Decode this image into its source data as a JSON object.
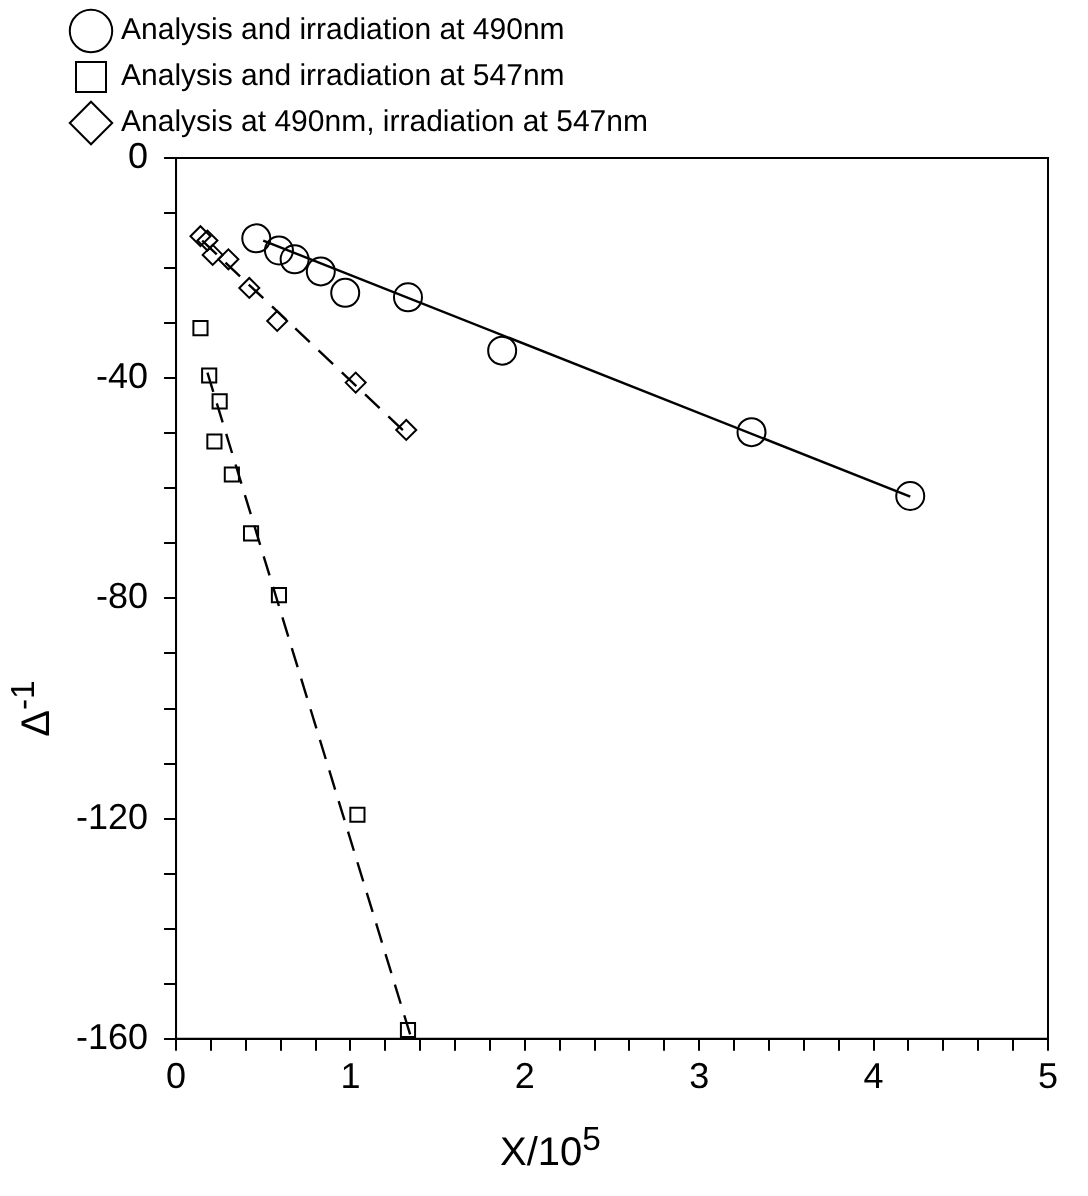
{
  "chart_data": {
    "type": "scatter",
    "xlabel": "X/10$^{5}$",
    "ylabel": "Δ$^{-1}$",
    "xlim": [
      0,
      5
    ],
    "xticks": [
      0,
      {
        "value": 0.2,
        "label": null
      },
      {
        "value": 0.4,
        "label": null
      },
      {
        "value": 0.6,
        "label": null
      },
      {
        "value": 0.8,
        "label": null
      },
      1,
      {
        "value": 1.2,
        "label": null
      },
      {
        "value": 1.4,
        "label": null
      },
      {
        "value": 1.6,
        "label": null
      },
      {
        "value": 1.8,
        "label": null
      },
      2,
      {
        "value": 2.2,
        "label": null
      },
      {
        "value": 2.4,
        "label": null
      },
      {
        "value": 2.6,
        "label": null
      },
      {
        "value": 2.8,
        "label": null
      },
      3,
      {
        "value": 3.2,
        "label": null
      },
      {
        "value": 3.4,
        "label": null
      },
      {
        "value": 3.6,
        "label": null
      },
      {
        "value": 3.8,
        "label": null
      },
      4,
      {
        "value": 4.2,
        "label": null
      },
      {
        "value": 4.4,
        "label": null
      },
      {
        "value": 4.6,
        "label": null
      },
      {
        "value": 4.8,
        "label": null
      },
      5
    ],
    "ylim": [
      -160,
      0
    ],
    "yticks": [
      -160,
      {
        "value": -150,
        "label": null
      },
      {
        "value": -140,
        "label": null
      },
      {
        "value": -130,
        "label": null
      },
      -120,
      {
        "value": -110,
        "label": null
      },
      {
        "value": -100,
        "label": null
      },
      {
        "value": -90,
        "label": null
      },
      -80,
      {
        "value": -70,
        "label": null
      },
      {
        "value": -60,
        "label": null
      },
      {
        "value": -50,
        "label": null
      },
      -40,
      {
        "value": -30,
        "label": null
      },
      {
        "value": -20,
        "label": null
      },
      {
        "value": -10,
        "label": null
      },
      0
    ],
    "grid": false,
    "legend": "top left",
    "series": [
      {
        "name": "Analysis and irradiation at 490nm",
        "marker": "circle",
        "color": "#000000",
        "x": [
          0.46,
          0.59,
          0.68,
          0.83,
          0.97,
          1.33,
          1.87,
          3.3,
          4.21
        ],
        "values": [
          -14.6,
          -16.8,
          -18.4,
          -20.6,
          -24.5,
          -25.3,
          -35,
          -49.8,
          -61.4
        ]
      },
      {
        "name": "Analysis and irradiation at 547nm",
        "marker": "square",
        "color": "#000000",
        "x": [
          0.14,
          0.19,
          0.25,
          0.22,
          0.32,
          0.43,
          0.59,
          1.04,
          1.33
        ],
        "values": [
          -30.9,
          -39.5,
          -44.2,
          -51.5,
          -57.5,
          -68.2,
          -79.4,
          -119.3,
          -158.4
        ]
      },
      {
        "name": "Analysis at 490nm, irradiation at 547nm",
        "marker": "diamond",
        "color": "#000000",
        "x": [
          0.14,
          0.18,
          0.21,
          0.3,
          0.42,
          0.58,
          1.03,
          1.32
        ],
        "values": [
          -14.2,
          -15,
          -17.6,
          -18.4,
          -23.6,
          -29.6,
          -40.8,
          -49.4
        ]
      },
      {
        "type": "line",
        "line_style": "solid",
        "color": "#000000",
        "x": [
          0.5,
          4.21
        ],
        "values": [
          -15,
          -61.5
        ]
      },
      {
        "type": "line",
        "line_style": "dashed",
        "color": "#000000",
        "x": [
          0.18,
          1.35
        ],
        "values": [
          -39,
          -160
        ]
      },
      {
        "type": "line",
        "line_style": "dashed",
        "color": "#000000",
        "x": [
          0.15,
          1.32
        ],
        "values": [
          -15,
          -50
        ]
      }
    ]
  }
}
